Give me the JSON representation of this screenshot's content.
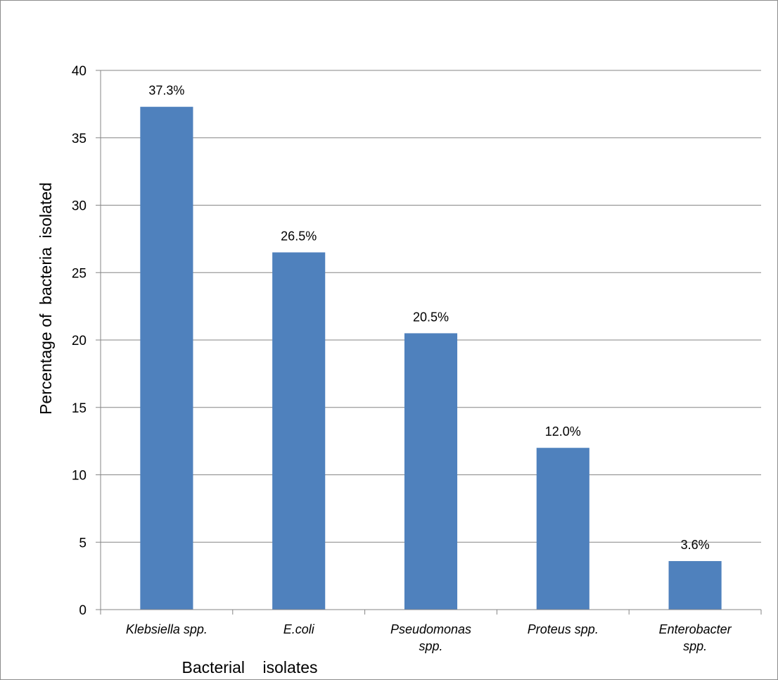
{
  "chart_data": {
    "type": "bar",
    "title": "",
    "xlabel": "Bacterial    isolates",
    "ylabel": "Percentage of  bacteria  isolated",
    "ylim": [
      0,
      40
    ],
    "yticks": [
      0,
      5,
      10,
      15,
      20,
      25,
      30,
      35,
      40
    ],
    "grid": true,
    "legend": "none",
    "bar_color": "#4f81bd",
    "categories": [
      [
        "Klebsiella spp."
      ],
      [
        "E.coli"
      ],
      [
        "Pseudomonas",
        "spp."
      ],
      [
        "Proteus spp."
      ],
      [
        "Enterobacter",
        "spp."
      ]
    ],
    "values": [
      37.3,
      26.5,
      20.5,
      12.0,
      3.6
    ],
    "data_labels": [
      "37.3%",
      "26.5%",
      "20.5%",
      "12.0%",
      "3.6%"
    ]
  }
}
